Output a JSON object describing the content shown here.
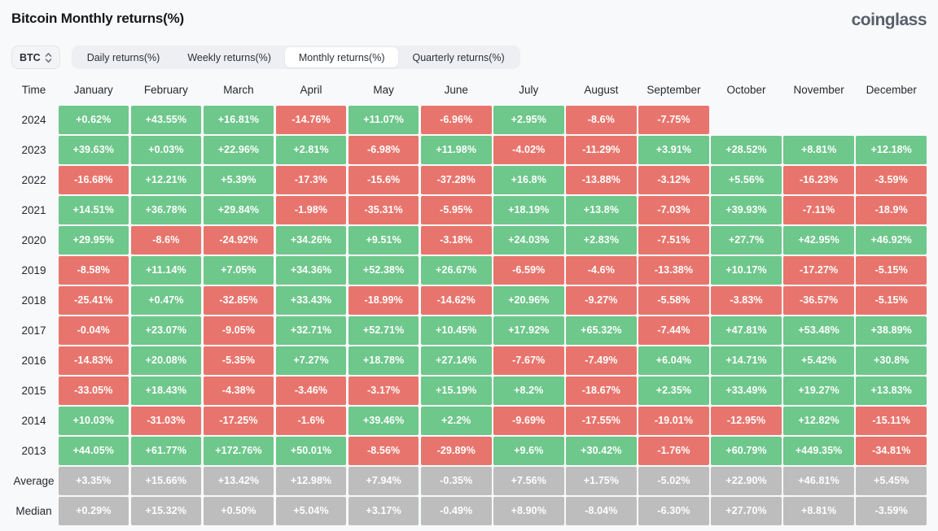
{
  "page": {
    "title": "Bitcoin Monthly returns(%)",
    "logo": "coinglass"
  },
  "controls": {
    "symbol_selector": {
      "value": "BTC"
    },
    "tabs": [
      {
        "label": "Daily returns(%)",
        "active": false
      },
      {
        "label": "Weekly returns(%)",
        "active": false
      },
      {
        "label": "Monthly returns(%)",
        "active": true
      },
      {
        "label": "Quarterly returns(%)",
        "active": false
      }
    ]
  },
  "colors": {
    "positive": "#6ec78b",
    "negative": "#e8756d",
    "neutral": "#bdbdbd"
  },
  "chart_data": {
    "type": "table",
    "title": "Bitcoin Monthly returns(%)",
    "columns": [
      "Time",
      "January",
      "February",
      "March",
      "April",
      "May",
      "June",
      "July",
      "August",
      "September",
      "October",
      "November",
      "December"
    ],
    "rows": [
      {
        "label": "2024",
        "kind": "year",
        "values": [
          "+0.62%",
          "+43.55%",
          "+16.81%",
          "-14.76%",
          "+11.07%",
          "-6.96%",
          "+2.95%",
          "-8.6%",
          "-7.75%",
          "",
          "",
          ""
        ]
      },
      {
        "label": "2023",
        "kind": "year",
        "values": [
          "+39.63%",
          "+0.03%",
          "+22.96%",
          "+2.81%",
          "-6.98%",
          "+11.98%",
          "-4.02%",
          "-11.29%",
          "+3.91%",
          "+28.52%",
          "+8.81%",
          "+12.18%"
        ]
      },
      {
        "label": "2022",
        "kind": "year",
        "values": [
          "-16.68%",
          "+12.21%",
          "+5.39%",
          "-17.3%",
          "-15.6%",
          "-37.28%",
          "+16.8%",
          "-13.88%",
          "-3.12%",
          "+5.56%",
          "-16.23%",
          "-3.59%"
        ]
      },
      {
        "label": "2021",
        "kind": "year",
        "values": [
          "+14.51%",
          "+36.78%",
          "+29.84%",
          "-1.98%",
          "-35.31%",
          "-5.95%",
          "+18.19%",
          "+13.8%",
          "-7.03%",
          "+39.93%",
          "-7.11%",
          "-18.9%"
        ]
      },
      {
        "label": "2020",
        "kind": "year",
        "values": [
          "+29.95%",
          "-8.6%",
          "-24.92%",
          "+34.26%",
          "+9.51%",
          "-3.18%",
          "+24.03%",
          "+2.83%",
          "-7.51%",
          "+27.7%",
          "+42.95%",
          "+46.92%"
        ]
      },
      {
        "label": "2019",
        "kind": "year",
        "values": [
          "-8.58%",
          "+11.14%",
          "+7.05%",
          "+34.36%",
          "+52.38%",
          "+26.67%",
          "-6.59%",
          "-4.6%",
          "-13.38%",
          "+10.17%",
          "-17.27%",
          "-5.15%"
        ]
      },
      {
        "label": "2018",
        "kind": "year",
        "values": [
          "-25.41%",
          "+0.47%",
          "-32.85%",
          "+33.43%",
          "-18.99%",
          "-14.62%",
          "+20.96%",
          "-9.27%",
          "-5.58%",
          "-3.83%",
          "-36.57%",
          "-5.15%"
        ]
      },
      {
        "label": "2017",
        "kind": "year",
        "values": [
          "-0.04%",
          "+23.07%",
          "-9.05%",
          "+32.71%",
          "+52.71%",
          "+10.45%",
          "+17.92%",
          "+65.32%",
          "-7.44%",
          "+47.81%",
          "+53.48%",
          "+38.89%"
        ]
      },
      {
        "label": "2016",
        "kind": "year",
        "values": [
          "-14.83%",
          "+20.08%",
          "-5.35%",
          "+7.27%",
          "+18.78%",
          "+27.14%",
          "-7.67%",
          "-7.49%",
          "+6.04%",
          "+14.71%",
          "+5.42%",
          "+30.8%"
        ]
      },
      {
        "label": "2015",
        "kind": "year",
        "values": [
          "-33.05%",
          "+18.43%",
          "-4.38%",
          "-3.46%",
          "-3.17%",
          "+15.19%",
          "+8.2%",
          "-18.67%",
          "+2.35%",
          "+33.49%",
          "+19.27%",
          "+13.83%"
        ]
      },
      {
        "label": "2014",
        "kind": "year",
        "values": [
          "+10.03%",
          "-31.03%",
          "-17.25%",
          "-1.6%",
          "+39.46%",
          "+2.2%",
          "-9.69%",
          "-17.55%",
          "-19.01%",
          "-12.95%",
          "+12.82%",
          "-15.11%"
        ]
      },
      {
        "label": "2013",
        "kind": "year",
        "values": [
          "+44.05%",
          "+61.77%",
          "+172.76%",
          "+50.01%",
          "-8.56%",
          "-29.89%",
          "+9.6%",
          "+30.42%",
          "-1.76%",
          "+60.79%",
          "+449.35%",
          "-34.81%"
        ]
      },
      {
        "label": "Average",
        "kind": "summary",
        "values": [
          "+3.35%",
          "+15.66%",
          "+13.42%",
          "+12.98%",
          "+7.94%",
          "-0.35%",
          "+7.56%",
          "+1.75%",
          "-5.02%",
          "+22.90%",
          "+46.81%",
          "+5.45%"
        ]
      },
      {
        "label": "Median",
        "kind": "summary",
        "values": [
          "+0.29%",
          "+15.32%",
          "+0.50%",
          "+5.04%",
          "+3.17%",
          "-0.49%",
          "+8.90%",
          "-8.04%",
          "-6.30%",
          "+27.70%",
          "+8.81%",
          "-3.59%"
        ]
      }
    ]
  }
}
